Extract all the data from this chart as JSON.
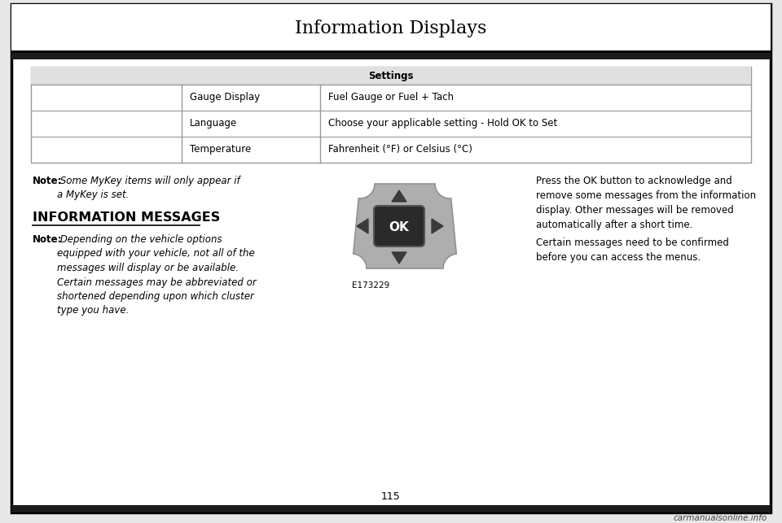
{
  "page_title": "Information Displays",
  "page_number": "115",
  "bg_color": "#e8e8e8",
  "content_bg": "#ffffff",
  "header_bg": "#ffffff",
  "table_header": "Settings",
  "row_labels": [
    "Gauge Display",
    "Language",
    "Temperature"
  ],
  "row_values": [
    "Fuel Gauge or Fuel + Tach",
    "Choose your applicable setting - Hold OK to Set",
    "Fahrenheit (°F) or Celsius (°C)"
  ],
  "note1_bold": "Note:",
  "note1_italic": " Some MyKey items will only appear if\na MyKey is set.",
  "section_header": "INFORMATION MESSAGES",
  "note2_bold": "Note:",
  "note2_italic": " Depending on the vehicle options\nequipped with your vehicle, not all of the\nmessages will display or be available.\nCertain messages may be abbreviated or\nshortened depending upon which cluster\ntype you have.",
  "image_label": "E173229",
  "right_text1": "Press the OK button to acknowledge and\nremove some messages from the information\ndisplay. Other messages will be removed\nautomatically after a short time.",
  "right_text2": "Certain messages need to be confirmed\nbefore you can access the menus.",
  "watermark": "carmanualsonline.info",
  "outer_border_color": "#000000",
  "inner_bg_color": "#ffffff",
  "table_border_color": "#999999",
  "dark_bar_color": "#1c1c1c",
  "header_row_color": "#e0e0e0",
  "btn_body_color": "#b8b8b8",
  "btn_ok_color": "#2a2a2a",
  "btn_arrow_color": "#3a3a3a"
}
